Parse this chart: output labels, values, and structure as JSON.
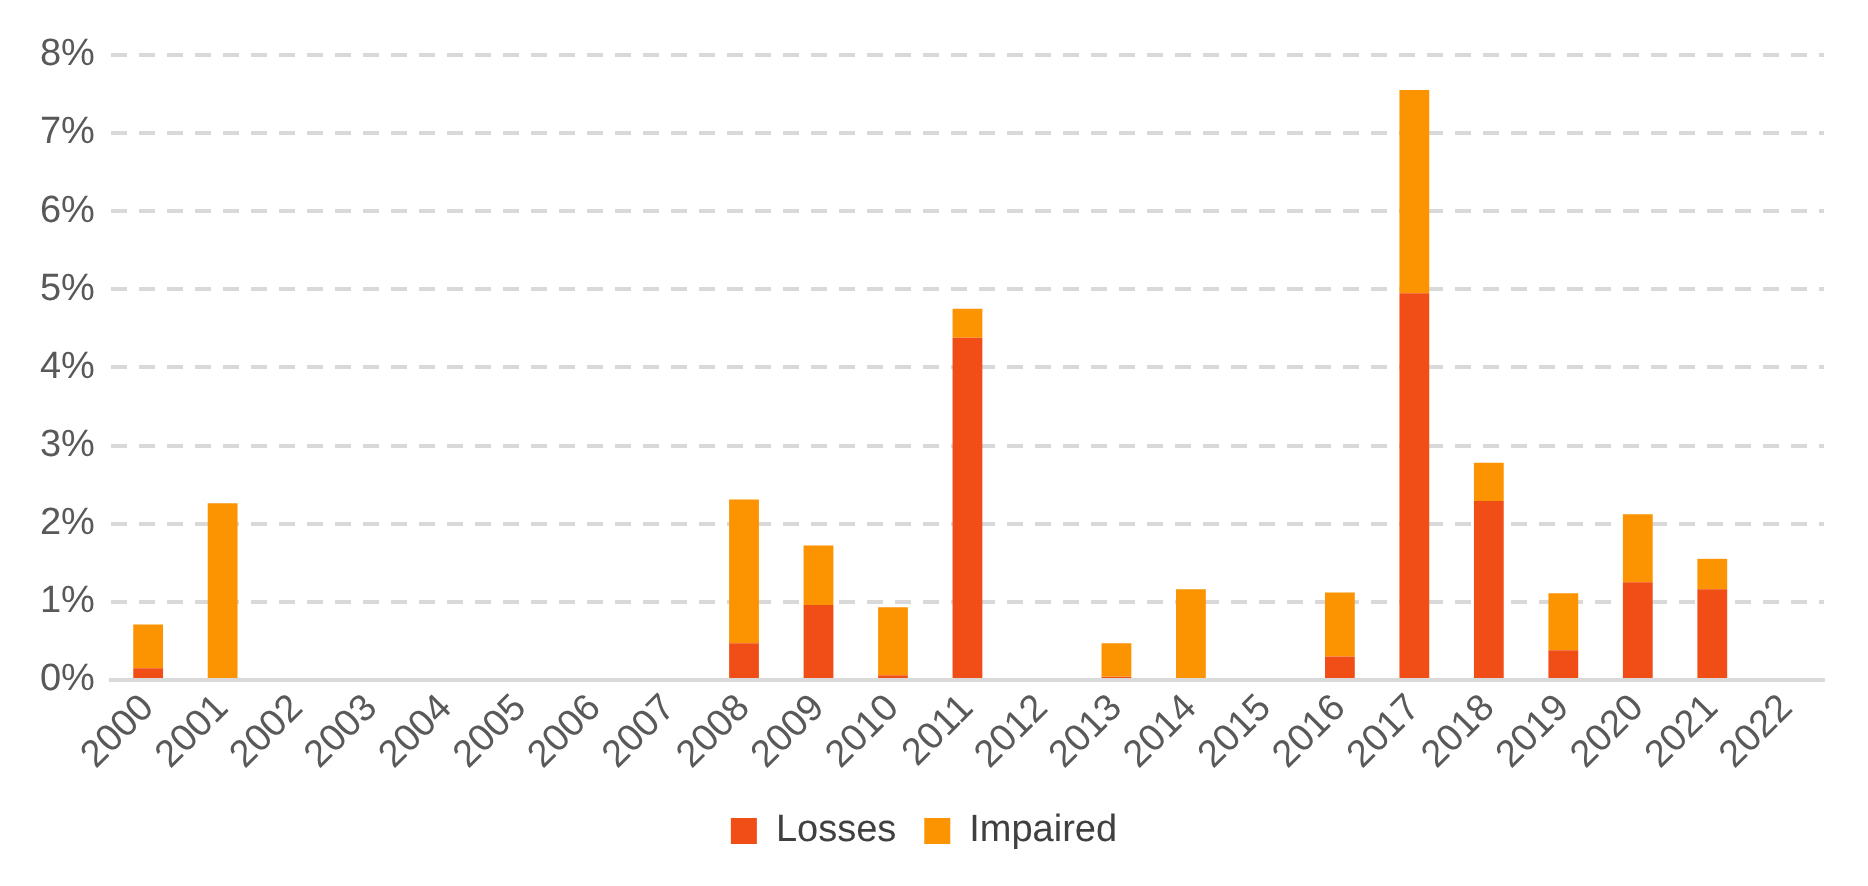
{
  "chart_data": {
    "type": "bar",
    "stacked": true,
    "categories": [
      "2000",
      "2001",
      "2002",
      "2003",
      "2004",
      "2005",
      "2006",
      "2007",
      "2008",
      "2009",
      "2010",
      "2011",
      "2012",
      "2013",
      "2014",
      "2015",
      "2016",
      "2017",
      "2018",
      "2019",
      "2020",
      "2021",
      "2022"
    ],
    "series": [
      {
        "name": "Losses",
        "color": "#f04e16",
        "values": [
          0.15,
          0,
          0,
          0,
          0,
          0,
          0,
          0,
          0.47,
          0.96,
          0.06,
          4.38,
          0,
          0.04,
          0,
          0,
          0.3,
          4.95,
          2.29,
          0.38,
          1.25,
          1.16,
          0
        ]
      },
      {
        "name": "Impaired",
        "color": "#fb9400",
        "values": [
          0.56,
          2.26,
          0,
          0,
          0,
          0,
          0,
          0,
          1.84,
          0.76,
          0.87,
          0.37,
          0,
          0.43,
          1.16,
          0,
          0.82,
          2.6,
          0.49,
          0.73,
          0.87,
          0.39,
          0
        ]
      }
    ],
    "ylim": [
      0,
      8
    ],
    "yticks": [
      {
        "value": 0,
        "label": "0%"
      },
      {
        "value": 1,
        "label": "1%"
      },
      {
        "value": 2,
        "label": "2%"
      },
      {
        "value": 3,
        "label": "3%"
      },
      {
        "value": 4,
        "label": "4%"
      },
      {
        "value": 5,
        "label": "5%"
      },
      {
        "value": 6,
        "label": "6%"
      },
      {
        "value": 7,
        "label": "7%"
      },
      {
        "value": 8,
        "label": "8%"
      }
    ],
    "grid": "y",
    "legend": "bottom"
  }
}
